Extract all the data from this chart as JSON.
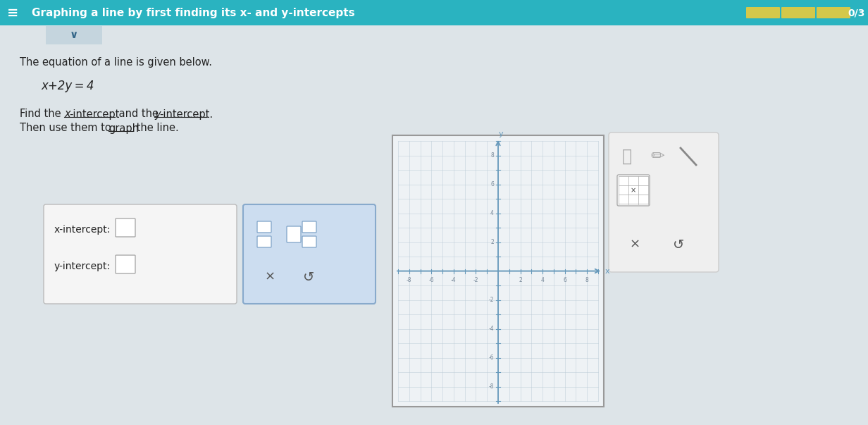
{
  "bg_color": "#dde4e8",
  "header_color": "#2ab3c0",
  "header_text": "Graphing a line by first finding its x- and y-intercepts",
  "header_text_color": "#ffffff",
  "header_fontsize": 11,
  "progress_text": "0/3",
  "progress_bar_color": "#d4c84a",
  "intro_text": "The equation of a line is given below.",
  "equation_text": "x+2y = 4",
  "x_intercept_label": "x-intercept:",
  "y_intercept_label": "y-intercept:",
  "body_bg": "#dde4e8",
  "grid_color": "#b8c8d4",
  "axis_color": "#6699bb",
  "graph_bg": "#eef2f5",
  "graph_border_color": "#999999",
  "toolbar_bg": "#f0f0f0",
  "toolbar_border": "#cccccc"
}
